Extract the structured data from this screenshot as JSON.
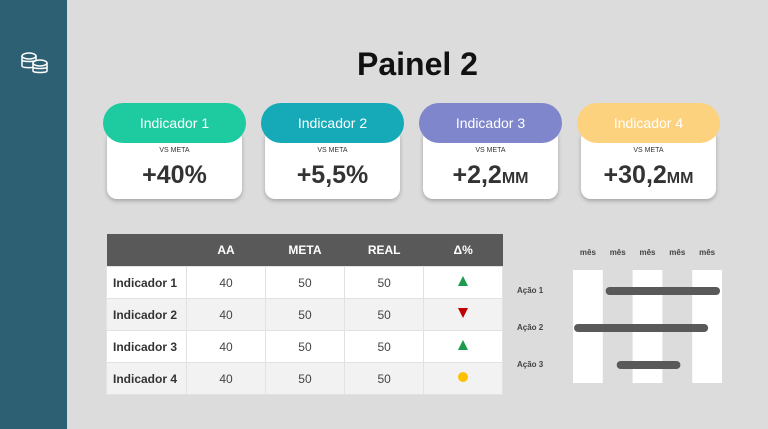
{
  "title": "Painel 2",
  "cards": [
    {
      "label": "Indicador 1",
      "sublabel": "VS META",
      "value": "+40%",
      "color": "#1ecba0"
    },
    {
      "label": "Indicador 2",
      "sublabel": "VS META",
      "value": "+5,5%",
      "color": "#16aab8"
    },
    {
      "label": "Indicador 3",
      "sublabel": "VS META",
      "value": "+2,2",
      "unit": "MM",
      "color": "#7f86cc"
    },
    {
      "label": "Indicador 4",
      "sublabel": "VS META",
      "value": "+30,2",
      "unit": "MM",
      "color": "#fdd27f"
    }
  ],
  "table": {
    "headers": [
      "AA",
      "META",
      "REAL",
      "Δ%"
    ],
    "rows": [
      {
        "name": "Indicador 1",
        "cells": [
          40,
          50,
          50
        ],
        "status": "up"
      },
      {
        "name": "Indicador 2",
        "cells": [
          40,
          50,
          50
        ],
        "status": "down"
      },
      {
        "name": "Indicador 3",
        "cells": [
          40,
          50,
          50
        ],
        "status": "up"
      },
      {
        "name": "Indicador 4",
        "cells": [
          40,
          50,
          50
        ],
        "status": "neutral"
      }
    ]
  },
  "gantt": {
    "months": [
      "mês",
      "mês",
      "mês",
      "mês",
      "mês"
    ],
    "xlim": [
      0,
      5
    ],
    "actions": [
      {
        "name": "Ação 1",
        "start": 1.23,
        "end": 4.8
      },
      {
        "name": "Ação 2",
        "start": 0.17,
        "end": 4.4
      },
      {
        "name": "Ação 3",
        "start": 1.6,
        "end": 3.47
      }
    ]
  }
}
